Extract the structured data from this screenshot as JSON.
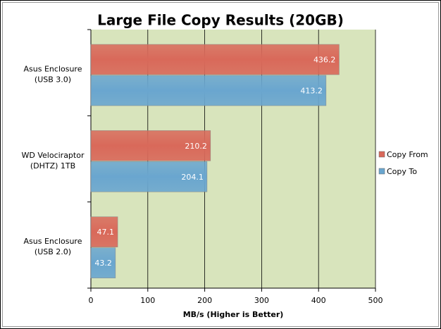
{
  "chart_data": {
    "type": "hbar",
    "title": "Large File Copy Results (20GB)",
    "x_label": "MB/s (Higher is Better)",
    "categories": [
      [
        "Asus Enclosure",
        "(USB 3.0)"
      ],
      [
        "WD Velociraptor",
        "(DHTZ) 1TB"
      ],
      [
        "Asus Enclosure",
        "(USB 2.0)"
      ]
    ],
    "series": [
      {
        "name": "Copy From",
        "color": "#d9695a",
        "values": [
          436.2,
          210.2,
          47.1
        ]
      },
      {
        "name": "Copy To",
        "color": "#6aa6cf",
        "values": [
          413.2,
          204.1,
          43.2
        ]
      }
    ],
    "xlim": [
      0,
      500
    ],
    "xticks": [
      0,
      100,
      200,
      300,
      400,
      500
    ],
    "grid": true,
    "legend": "right"
  }
}
